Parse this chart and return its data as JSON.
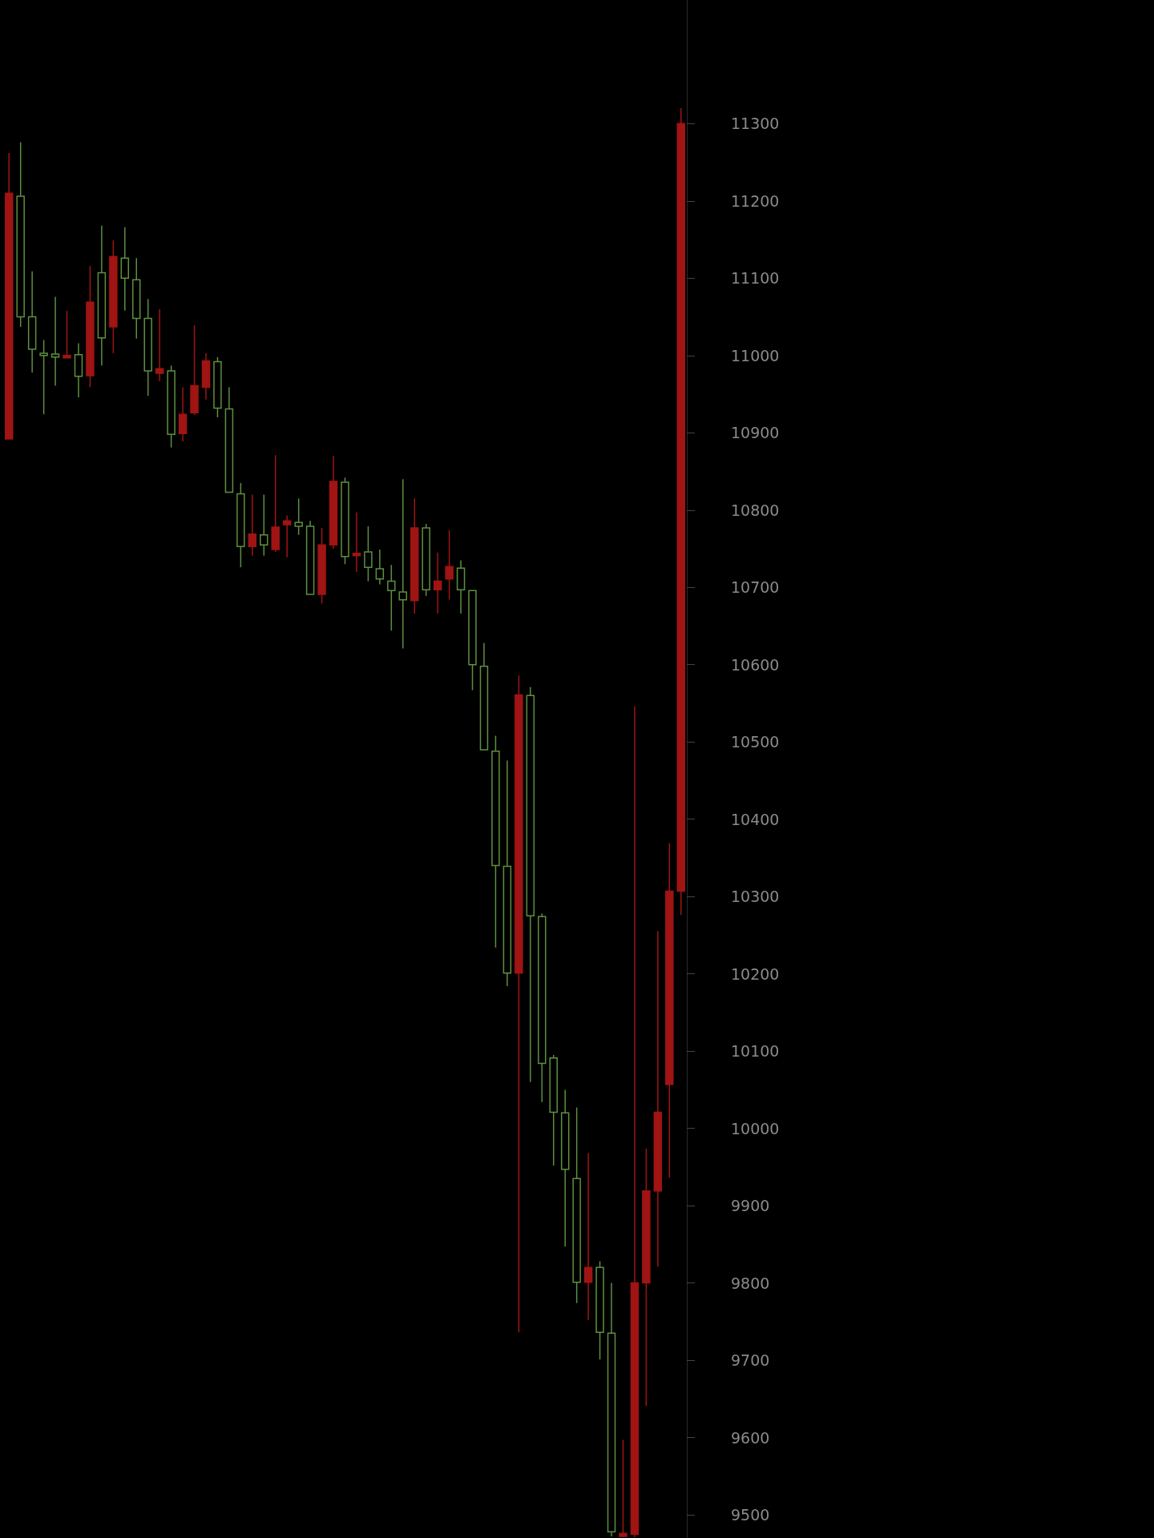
{
  "chart_data": {
    "type": "candlestick",
    "ohlc": [
      [
        10892,
        11262,
        10892,
        11210
      ],
      [
        11206,
        11276,
        11037,
        11050
      ],
      [
        11050,
        11109,
        10978,
        11008
      ],
      [
        11003,
        11020,
        10924,
        11000
      ],
      [
        11002,
        11076,
        10961,
        10998
      ],
      [
        10997,
        11058,
        10997,
        11000
      ],
      [
        11001,
        11016,
        10946,
        10973
      ],
      [
        10974,
        11116,
        10959,
        11069
      ],
      [
        11107,
        11168,
        10987,
        11023
      ],
      [
        11037,
        11149,
        11003,
        11128
      ],
      [
        11126,
        11166,
        11058,
        11100
      ],
      [
        11098,
        11126,
        11022,
        11048
      ],
      [
        11048,
        11073,
        10948,
        10980
      ],
      [
        10977,
        11060,
        10967,
        10983
      ],
      [
        10980,
        10987,
        10881,
        10898
      ],
      [
        10899,
        10959,
        10889,
        10924
      ],
      [
        10926,
        11039,
        10923,
        10961
      ],
      [
        10959,
        11003,
        10943,
        10993
      ],
      [
        10992,
        10998,
        10920,
        10932
      ],
      [
        10931,
        10959,
        10823,
        10823
      ],
      [
        10821,
        10835,
        10726,
        10753
      ],
      [
        10753,
        10820,
        10741,
        10769
      ],
      [
        10768,
        10820,
        10741,
        10755
      ],
      [
        10749,
        10871,
        10746,
        10778
      ],
      [
        10781,
        10793,
        10739,
        10786
      ],
      [
        10784,
        10815,
        10768,
        10779
      ],
      [
        10779,
        10786,
        10691,
        10691
      ],
      [
        10691,
        10777,
        10679,
        10755
      ],
      [
        10755,
        10870,
        10750,
        10837
      ],
      [
        10836,
        10842,
        10730,
        10740
      ],
      [
        10741,
        10797,
        10720,
        10744
      ],
      [
        10746,
        10779,
        10708,
        10726
      ],
      [
        10724,
        10749,
        10704,
        10711
      ],
      [
        10708,
        10729,
        10644,
        10696
      ],
      [
        10694,
        10840,
        10621,
        10684
      ],
      [
        10683,
        10815,
        10666,
        10777
      ],
      [
        10777,
        10782,
        10689,
        10697
      ],
      [
        10697,
        10745,
        10666,
        10708
      ],
      [
        10711,
        10774,
        10684,
        10727
      ],
      [
        10725,
        10735,
        10666,
        10697
      ],
      [
        10696,
        10696,
        10567,
        10600
      ],
      [
        10598,
        10628,
        10490,
        10490
      ],
      [
        10488,
        10508,
        10234,
        10340
      ],
      [
        10339,
        10476,
        10184,
        10201
      ],
      [
        10201,
        10586,
        9736,
        10561
      ],
      [
        10560,
        10571,
        10060,
        10275
      ],
      [
        10274,
        10278,
        10034,
        10084
      ],
      [
        10091,
        10095,
        9952,
        10021
      ],
      [
        10020,
        10050,
        9847,
        9947
      ],
      [
        9935,
        10027,
        9774,
        9801
      ],
      [
        9801,
        9968,
        9752,
        9820
      ],
      [
        9820,
        9828,
        9701,
        9736
      ],
      [
        9735,
        9800,
        9472,
        9478
      ],
      [
        9472,
        9597,
        9471,
        9476
      ],
      [
        9475,
        10546,
        9471,
        9800
      ],
      [
        9800,
        9974,
        9641,
        9919
      ],
      [
        9919,
        10255,
        9821,
        10021
      ],
      [
        10057,
        10369,
        9936,
        10307
      ],
      [
        10307,
        11320,
        10276,
        11300
      ]
    ],
    "colors": [
      "#a01414",
      "#5e8f40",
      "#5e8f40",
      "#5e8f40",
      "#5e8f40",
      "#a01414",
      "#5e8f40",
      "#a01414",
      "#5e8f40",
      "#a01414",
      "#5e8f40",
      "#5e8f40",
      "#5e8f40",
      "#a01414",
      "#5e8f40",
      "#a01414",
      "#a01414",
      "#a01414",
      "#5e8f40",
      "#5e8f40",
      "#5e8f40",
      "#a01414",
      "#5e8f40",
      "#a01414",
      "#a01414",
      "#5e8f40",
      "#5e8f40",
      "#a01414",
      "#a01414",
      "#5e8f40",
      "#a01414",
      "#5e8f40",
      "#5e8f40",
      "#5e8f40",
      "#5e8f40",
      "#a01414",
      "#5e8f40",
      "#a01414",
      "#a01414",
      "#5e8f40",
      "#5e8f40",
      "#5e8f40",
      "#5e8f40",
      "#5e8f40",
      "#a01414",
      "#5e8f40",
      "#5e8f40",
      "#5e8f40",
      "#5e8f40",
      "#5e8f40",
      "#a01414",
      "#5e8f40",
      "#5e8f40",
      "#a01414",
      "#a01414",
      "#a01414",
      "#a01414",
      "#a01414",
      "#a01414"
    ],
    "ylim": [
      9470,
      11460
    ],
    "yticks": [
      9500,
      9600,
      9700,
      9800,
      9900,
      10000,
      10100,
      10200,
      10300,
      10400,
      10500,
      10600,
      10700,
      10800,
      10900,
      11000,
      11100,
      11200,
      11300
    ],
    "tick_labels": "y"
  }
}
